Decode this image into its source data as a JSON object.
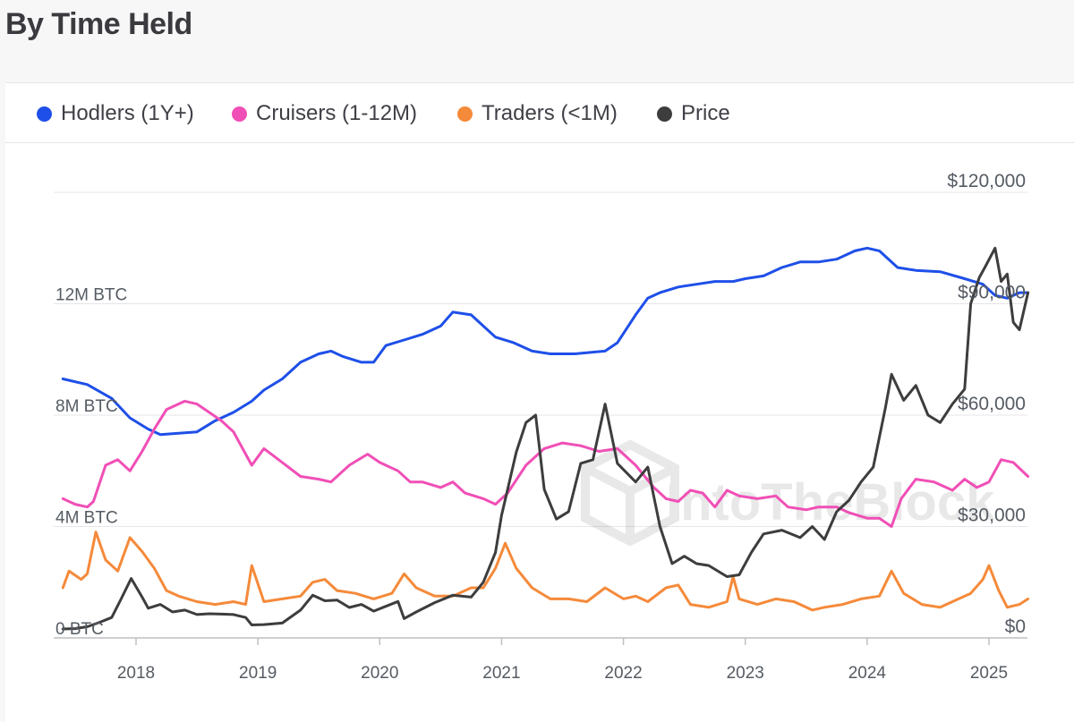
{
  "title": "By Time Held",
  "legend": [
    {
      "label": "Hodlers (1Y+)",
      "color": "#1e4fe8"
    },
    {
      "label": "Cruisers (1-12M)",
      "color": "#f04fb6"
    },
    {
      "label": "Traders (<1M)",
      "color": "#f58a3a"
    },
    {
      "label": "Price",
      "color": "#3d3d3d"
    }
  ],
  "watermark": "IntoTheBlock",
  "chart_data": {
    "type": "line",
    "xlabel": "",
    "x_ticks": [
      "2018",
      "2019",
      "2020",
      "2021",
      "2022",
      "2023",
      "2024",
      "2025"
    ],
    "x_range": [
      2017.4,
      2025.32
    ],
    "left_axis": {
      "ticks": [
        "0 BTC",
        "4M BTC",
        "8M BTC",
        "12M BTC"
      ],
      "values": [
        0,
        4,
        8,
        12
      ],
      "unit": "M BTC",
      "range": [
        0,
        16
      ]
    },
    "right_axis": {
      "ticks": [
        "$0",
        "$30,000",
        "$60,000",
        "$90,000",
        "$120,000"
      ],
      "values": [
        0,
        30000,
        60000,
        90000,
        120000
      ],
      "range": [
        0,
        120000
      ]
    },
    "grid": true,
    "legend_position": "top",
    "series": [
      {
        "name": "Hodlers (1Y+)",
        "axis": "left",
        "color": "#1e4fe8",
        "points": [
          [
            2017.4,
            9.3
          ],
          [
            2017.6,
            9.1
          ],
          [
            2017.8,
            8.6
          ],
          [
            2017.95,
            7.9
          ],
          [
            2018.1,
            7.5
          ],
          [
            2018.2,
            7.3
          ],
          [
            2018.35,
            7.35
          ],
          [
            2018.5,
            7.4
          ],
          [
            2018.65,
            7.8
          ],
          [
            2018.8,
            8.1
          ],
          [
            2018.95,
            8.5
          ],
          [
            2019.05,
            8.9
          ],
          [
            2019.2,
            9.3
          ],
          [
            2019.35,
            9.9
          ],
          [
            2019.5,
            10.2
          ],
          [
            2019.6,
            10.3
          ],
          [
            2019.7,
            10.1
          ],
          [
            2019.85,
            9.9
          ],
          [
            2019.95,
            9.9
          ],
          [
            2020.05,
            10.5
          ],
          [
            2020.2,
            10.7
          ],
          [
            2020.35,
            10.9
          ],
          [
            2020.5,
            11.2
          ],
          [
            2020.6,
            11.7
          ],
          [
            2020.75,
            11.6
          ],
          [
            2020.85,
            11.2
          ],
          [
            2020.95,
            10.8
          ],
          [
            2021.1,
            10.6
          ],
          [
            2021.25,
            10.3
          ],
          [
            2021.4,
            10.2
          ],
          [
            2021.6,
            10.2
          ],
          [
            2021.85,
            10.3
          ],
          [
            2021.95,
            10.6
          ],
          [
            2022.1,
            11.6
          ],
          [
            2022.2,
            12.2
          ],
          [
            2022.3,
            12.4
          ],
          [
            2022.45,
            12.6
          ],
          [
            2022.6,
            12.7
          ],
          [
            2022.75,
            12.8
          ],
          [
            2022.9,
            12.8
          ],
          [
            2023.0,
            12.9
          ],
          [
            2023.15,
            13.0
          ],
          [
            2023.3,
            13.3
          ],
          [
            2023.45,
            13.5
          ],
          [
            2023.6,
            13.5
          ],
          [
            2023.75,
            13.6
          ],
          [
            2023.9,
            13.9
          ],
          [
            2024.0,
            14.0
          ],
          [
            2024.1,
            13.9
          ],
          [
            2024.25,
            13.3
          ],
          [
            2024.4,
            13.2
          ],
          [
            2024.6,
            13.15
          ],
          [
            2024.8,
            12.9
          ],
          [
            2024.95,
            12.7
          ],
          [
            2025.05,
            12.3
          ],
          [
            2025.15,
            12.2
          ],
          [
            2025.25,
            12.4
          ],
          [
            2025.32,
            12.4
          ]
        ]
      },
      {
        "name": "Cruisers (1-12M)",
        "axis": "left",
        "color": "#f04fb6",
        "points": [
          [
            2017.4,
            5.0
          ],
          [
            2017.5,
            4.8
          ],
          [
            2017.6,
            4.7
          ],
          [
            2017.65,
            4.9
          ],
          [
            2017.75,
            6.2
          ],
          [
            2017.85,
            6.4
          ],
          [
            2017.95,
            6.0
          ],
          [
            2018.05,
            6.7
          ],
          [
            2018.15,
            7.5
          ],
          [
            2018.25,
            8.2
          ],
          [
            2018.4,
            8.5
          ],
          [
            2018.5,
            8.4
          ],
          [
            2018.6,
            8.1
          ],
          [
            2018.7,
            7.8
          ],
          [
            2018.8,
            7.4
          ],
          [
            2018.9,
            6.6
          ],
          [
            2018.95,
            6.2
          ],
          [
            2019.05,
            6.8
          ],
          [
            2019.2,
            6.3
          ],
          [
            2019.35,
            5.8
          ],
          [
            2019.5,
            5.7
          ],
          [
            2019.6,
            5.6
          ],
          [
            2019.75,
            6.2
          ],
          [
            2019.9,
            6.6
          ],
          [
            2020.0,
            6.3
          ],
          [
            2020.15,
            6.0
          ],
          [
            2020.25,
            5.6
          ],
          [
            2020.35,
            5.6
          ],
          [
            2020.5,
            5.4
          ],
          [
            2020.6,
            5.6
          ],
          [
            2020.7,
            5.2
          ],
          [
            2020.85,
            5.0
          ],
          [
            2020.95,
            4.8
          ],
          [
            2021.05,
            5.2
          ],
          [
            2021.2,
            6.2
          ],
          [
            2021.35,
            6.8
          ],
          [
            2021.5,
            7.0
          ],
          [
            2021.65,
            6.9
          ],
          [
            2021.8,
            6.7
          ],
          [
            2021.95,
            6.8
          ],
          [
            2022.1,
            6.2
          ],
          [
            2022.25,
            5.4
          ],
          [
            2022.35,
            5.0
          ],
          [
            2022.45,
            4.9
          ],
          [
            2022.55,
            5.3
          ],
          [
            2022.65,
            5.2
          ],
          [
            2022.75,
            4.7
          ],
          [
            2022.85,
            5.3
          ],
          [
            2022.95,
            5.1
          ],
          [
            2023.1,
            5.0
          ],
          [
            2023.25,
            5.1
          ],
          [
            2023.35,
            4.7
          ],
          [
            2023.5,
            4.6
          ],
          [
            2023.6,
            4.7
          ],
          [
            2023.75,
            4.7
          ],
          [
            2023.85,
            4.5
          ],
          [
            2024.0,
            4.3
          ],
          [
            2024.1,
            4.3
          ],
          [
            2024.2,
            4.0
          ],
          [
            2024.28,
            5.0
          ],
          [
            2024.4,
            5.7
          ],
          [
            2024.55,
            5.6
          ],
          [
            2024.7,
            5.3
          ],
          [
            2024.8,
            5.7
          ],
          [
            2024.9,
            5.4
          ],
          [
            2025.0,
            5.6
          ],
          [
            2025.1,
            6.4
          ],
          [
            2025.2,
            6.3
          ],
          [
            2025.32,
            5.8
          ]
        ]
      },
      {
        "name": "Traders (<1M)",
        "axis": "left",
        "color": "#f58a3a",
        "points": [
          [
            2017.4,
            1.8
          ],
          [
            2017.45,
            2.4
          ],
          [
            2017.55,
            2.1
          ],
          [
            2017.6,
            2.3
          ],
          [
            2017.67,
            3.8
          ],
          [
            2017.75,
            2.8
          ],
          [
            2017.85,
            2.4
          ],
          [
            2017.95,
            3.6
          ],
          [
            2018.05,
            3.1
          ],
          [
            2018.15,
            2.5
          ],
          [
            2018.25,
            1.7
          ],
          [
            2018.35,
            1.5
          ],
          [
            2018.5,
            1.3
          ],
          [
            2018.65,
            1.2
          ],
          [
            2018.8,
            1.3
          ],
          [
            2018.9,
            1.2
          ],
          [
            2018.95,
            2.6
          ],
          [
            2019.05,
            1.3
          ],
          [
            2019.2,
            1.4
          ],
          [
            2019.35,
            1.5
          ],
          [
            2019.45,
            2.0
          ],
          [
            2019.55,
            2.1
          ],
          [
            2019.65,
            1.7
          ],
          [
            2019.8,
            1.6
          ],
          [
            2019.95,
            1.4
          ],
          [
            2020.1,
            1.6
          ],
          [
            2020.2,
            2.3
          ],
          [
            2020.3,
            1.8
          ],
          [
            2020.45,
            1.5
          ],
          [
            2020.6,
            1.5
          ],
          [
            2020.75,
            1.8
          ],
          [
            2020.85,
            1.8
          ],
          [
            2020.95,
            2.5
          ],
          [
            2021.03,
            3.4
          ],
          [
            2021.12,
            2.5
          ],
          [
            2021.25,
            1.8
          ],
          [
            2021.4,
            1.4
          ],
          [
            2021.55,
            1.4
          ],
          [
            2021.7,
            1.3
          ],
          [
            2021.85,
            1.8
          ],
          [
            2022.0,
            1.4
          ],
          [
            2022.1,
            1.5
          ],
          [
            2022.2,
            1.3
          ],
          [
            2022.35,
            1.8
          ],
          [
            2022.45,
            1.9
          ],
          [
            2022.55,
            1.2
          ],
          [
            2022.7,
            1.1
          ],
          [
            2022.85,
            1.3
          ],
          [
            2022.9,
            2.2
          ],
          [
            2022.95,
            1.4
          ],
          [
            2023.1,
            1.2
          ],
          [
            2023.25,
            1.4
          ],
          [
            2023.4,
            1.3
          ],
          [
            2023.55,
            1.0
          ],
          [
            2023.65,
            1.1
          ],
          [
            2023.8,
            1.2
          ],
          [
            2023.95,
            1.4
          ],
          [
            2024.1,
            1.5
          ],
          [
            2024.2,
            2.4
          ],
          [
            2024.3,
            1.6
          ],
          [
            2024.45,
            1.2
          ],
          [
            2024.6,
            1.1
          ],
          [
            2024.75,
            1.4
          ],
          [
            2024.85,
            1.6
          ],
          [
            2024.95,
            2.1
          ],
          [
            2025.0,
            2.6
          ],
          [
            2025.08,
            1.7
          ],
          [
            2025.15,
            1.1
          ],
          [
            2025.25,
            1.2
          ],
          [
            2025.32,
            1.4
          ]
        ]
      },
      {
        "name": "Price",
        "axis": "right",
        "color": "#3d3d3d",
        "points": [
          [
            2017.4,
            2400
          ],
          [
            2017.5,
            2500
          ],
          [
            2017.6,
            3000
          ],
          [
            2017.7,
            4200
          ],
          [
            2017.8,
            5500
          ],
          [
            2017.87,
            10000
          ],
          [
            2017.96,
            16000
          ],
          [
            2018.05,
            11000
          ],
          [
            2018.1,
            8000
          ],
          [
            2018.2,
            9000
          ],
          [
            2018.3,
            7000
          ],
          [
            2018.4,
            7500
          ],
          [
            2018.5,
            6300
          ],
          [
            2018.6,
            6500
          ],
          [
            2018.7,
            6400
          ],
          [
            2018.8,
            6300
          ],
          [
            2018.9,
            5500
          ],
          [
            2018.95,
            3500
          ],
          [
            2019.05,
            3600
          ],
          [
            2019.2,
            4000
          ],
          [
            2019.35,
            7500
          ],
          [
            2019.45,
            11500
          ],
          [
            2019.55,
            10000
          ],
          [
            2019.65,
            10200
          ],
          [
            2019.75,
            8200
          ],
          [
            2019.85,
            9000
          ],
          [
            2019.95,
            7200
          ],
          [
            2020.05,
            8500
          ],
          [
            2020.15,
            9800
          ],
          [
            2020.2,
            5200
          ],
          [
            2020.3,
            7000
          ],
          [
            2020.45,
            9500
          ],
          [
            2020.6,
            11500
          ],
          [
            2020.75,
            11000
          ],
          [
            2020.85,
            15000
          ],
          [
            2020.95,
            23000
          ],
          [
            2021.0,
            33000
          ],
          [
            2021.05,
            40000
          ],
          [
            2021.12,
            50000
          ],
          [
            2021.2,
            58000
          ],
          [
            2021.28,
            60000
          ],
          [
            2021.35,
            40000
          ],
          [
            2021.45,
            32000
          ],
          [
            2021.55,
            34000
          ],
          [
            2021.65,
            47000
          ],
          [
            2021.75,
            48000
          ],
          [
            2021.85,
            63000
          ],
          [
            2021.95,
            47000
          ],
          [
            2022.1,
            42000
          ],
          [
            2022.2,
            46000
          ],
          [
            2022.3,
            30000
          ],
          [
            2022.4,
            20000
          ],
          [
            2022.5,
            22000
          ],
          [
            2022.6,
            20000
          ],
          [
            2022.7,
            19500
          ],
          [
            2022.85,
            16500
          ],
          [
            2022.95,
            17000
          ],
          [
            2023.05,
            23000
          ],
          [
            2023.15,
            28000
          ],
          [
            2023.3,
            29000
          ],
          [
            2023.45,
            27000
          ],
          [
            2023.55,
            30000
          ],
          [
            2023.65,
            26500
          ],
          [
            2023.75,
            34000
          ],
          [
            2023.85,
            37000
          ],
          [
            2023.95,
            42000
          ],
          [
            2024.05,
            46000
          ],
          [
            2024.15,
            62000
          ],
          [
            2024.2,
            71000
          ],
          [
            2024.3,
            64000
          ],
          [
            2024.4,
            68000
          ],
          [
            2024.5,
            60000
          ],
          [
            2024.6,
            58000
          ],
          [
            2024.7,
            63000
          ],
          [
            2024.8,
            67000
          ],
          [
            2024.85,
            90000
          ],
          [
            2024.92,
            97000
          ],
          [
            2024.97,
            100000
          ],
          [
            2025.05,
            105000
          ],
          [
            2025.1,
            96000
          ],
          [
            2025.15,
            98000
          ],
          [
            2025.2,
            85000
          ],
          [
            2025.25,
            83000
          ],
          [
            2025.32,
            93000
          ]
        ]
      }
    ]
  }
}
